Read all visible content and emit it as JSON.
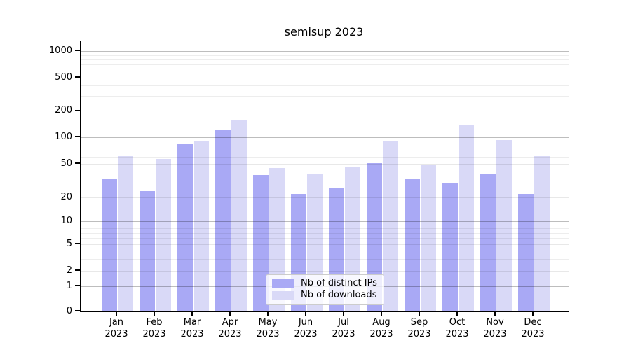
{
  "figure": {
    "title": "semisup 2023"
  },
  "chart_data": {
    "type": "bar",
    "title": "semisup 2023",
    "categories": [
      "Jan",
      "Feb",
      "Mar",
      "Apr",
      "May",
      "Jun",
      "Jul",
      "Aug",
      "Sep",
      "Oct",
      "Nov",
      "Dec"
    ],
    "year_label": "2023",
    "series": [
      {
        "name": "Nb of distinct IPs",
        "color": "#a9a9f5",
        "values": [
          33,
          24,
          83,
          123,
          37,
          22,
          26,
          51,
          33,
          30,
          38,
          22
        ]
      },
      {
        "name": "Nb of downloads",
        "color": "#d9d9f7",
        "values": [
          61,
          57,
          91,
          158,
          45,
          38,
          46,
          89,
          48,
          136,
          93,
          61
        ]
      }
    ],
    "xlabel": "",
    "ylabel": "",
    "yscale": "symlog",
    "yticks": [
      0,
      1,
      2,
      5,
      10,
      20,
      50,
      100,
      200,
      500,
      1000
    ],
    "ylim": [
      0,
      1400
    ],
    "grid": "both",
    "legend_position": "lower center"
  }
}
